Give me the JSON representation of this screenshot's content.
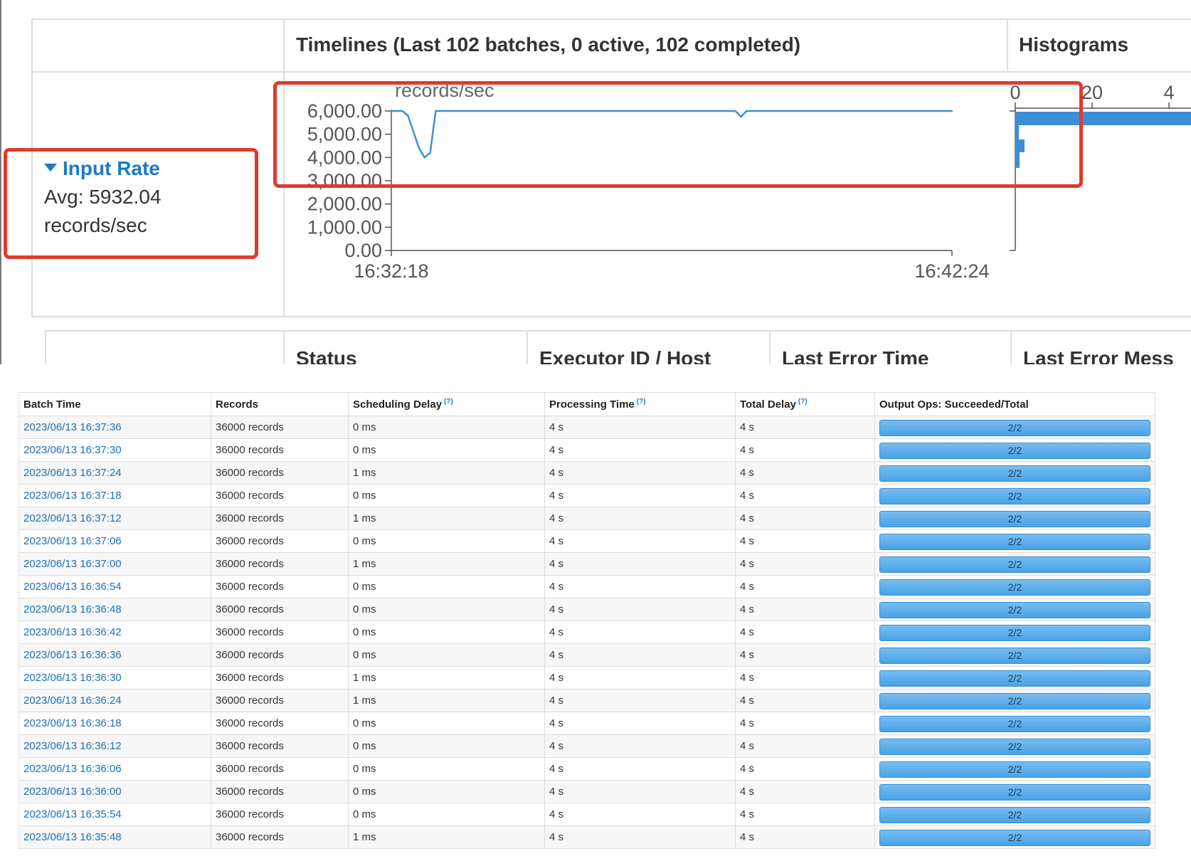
{
  "panel": {
    "timelines_title": "Timelines (Last 102 batches, 0 active, 102 completed)",
    "histograms_title": "Histograms",
    "input_rate_label": "Input Rate",
    "input_rate_avg": "Avg: 5932.04",
    "input_rate_unit": "records/sec",
    "receivers_headers": [
      "Status",
      "Executor ID / Host",
      "Last Error Time",
      "Last Error Mess"
    ]
  },
  "chart_data": [
    {
      "type": "line",
      "ylabel": "records/sec",
      "y_ticks": [
        "6,000.00",
        "5,000.00",
        "4,000.00",
        "3,000.00",
        "2,000.00",
        "1,000.00",
        "0.00"
      ],
      "x_ticks": [
        "16:32:18",
        "16:42:24"
      ],
      "ylim": [
        0,
        6000
      ],
      "x": [
        "16:32:18",
        "16:32:30",
        "16:32:36",
        "16:32:48",
        "16:32:54",
        "16:33:00",
        "16:33:06",
        "16:38:30",
        "16:38:36",
        "16:38:42",
        "16:42:24"
      ],
      "values": [
        6000,
        6000,
        5800,
        4400,
        4000,
        4200,
        6000,
        6000,
        5750,
        6000,
        6000
      ],
      "color": "#3c8fd6"
    },
    {
      "type": "bar",
      "orientation": "horizontal",
      "x_ticks": [
        "0",
        "20",
        "4"
      ],
      "color": "#3c8fd6"
    }
  ],
  "table": {
    "headers": [
      "Batch Time",
      "Records",
      "Scheduling Delay",
      "Processing Time",
      "Total Delay",
      "Output Ops: Succeeded/Total"
    ],
    "help_marker": "(?)",
    "rows": [
      {
        "time": "2023/06/13 16:37:36",
        "records": "36000 records",
        "sched": "0 ms",
        "proc": "4 s",
        "total": "4 s",
        "ops": "2/2"
      },
      {
        "time": "2023/06/13 16:37:30",
        "records": "36000 records",
        "sched": "0 ms",
        "proc": "4 s",
        "total": "4 s",
        "ops": "2/2"
      },
      {
        "time": "2023/06/13 16:37:24",
        "records": "36000 records",
        "sched": "1 ms",
        "proc": "4 s",
        "total": "4 s",
        "ops": "2/2"
      },
      {
        "time": "2023/06/13 16:37:18",
        "records": "36000 records",
        "sched": "0 ms",
        "proc": "4 s",
        "total": "4 s",
        "ops": "2/2"
      },
      {
        "time": "2023/06/13 16:37:12",
        "records": "36000 records",
        "sched": "1 ms",
        "proc": "4 s",
        "total": "4 s",
        "ops": "2/2"
      },
      {
        "time": "2023/06/13 16:37:06",
        "records": "36000 records",
        "sched": "0 ms",
        "proc": "4 s",
        "total": "4 s",
        "ops": "2/2"
      },
      {
        "time": "2023/06/13 16:37:00",
        "records": "36000 records",
        "sched": "1 ms",
        "proc": "4 s",
        "total": "4 s",
        "ops": "2/2"
      },
      {
        "time": "2023/06/13 16:36:54",
        "records": "36000 records",
        "sched": "0 ms",
        "proc": "4 s",
        "total": "4 s",
        "ops": "2/2"
      },
      {
        "time": "2023/06/13 16:36:48",
        "records": "36000 records",
        "sched": "0 ms",
        "proc": "4 s",
        "total": "4 s",
        "ops": "2/2"
      },
      {
        "time": "2023/06/13 16:36:42",
        "records": "36000 records",
        "sched": "0 ms",
        "proc": "4 s",
        "total": "4 s",
        "ops": "2/2"
      },
      {
        "time": "2023/06/13 16:36:36",
        "records": "36000 records",
        "sched": "0 ms",
        "proc": "4 s",
        "total": "4 s",
        "ops": "2/2"
      },
      {
        "time": "2023/06/13 16:36:30",
        "records": "36000 records",
        "sched": "1 ms",
        "proc": "4 s",
        "total": "4 s",
        "ops": "2/2"
      },
      {
        "time": "2023/06/13 16:36:24",
        "records": "36000 records",
        "sched": "1 ms",
        "proc": "4 s",
        "total": "4 s",
        "ops": "2/2"
      },
      {
        "time": "2023/06/13 16:36:18",
        "records": "36000 records",
        "sched": "0 ms",
        "proc": "4 s",
        "total": "4 s",
        "ops": "2/2"
      },
      {
        "time": "2023/06/13 16:36:12",
        "records": "36000 records",
        "sched": "0 ms",
        "proc": "4 s",
        "total": "4 s",
        "ops": "2/2"
      },
      {
        "time": "2023/06/13 16:36:06",
        "records": "36000 records",
        "sched": "0 ms",
        "proc": "4 s",
        "total": "4 s",
        "ops": "2/2"
      },
      {
        "time": "2023/06/13 16:36:00",
        "records": "36000 records",
        "sched": "0 ms",
        "proc": "4 s",
        "total": "4 s",
        "ops": "2/2"
      },
      {
        "time": "2023/06/13 16:35:54",
        "records": "36000 records",
        "sched": "0 ms",
        "proc": "4 s",
        "total": "4 s",
        "ops": "2/2"
      },
      {
        "time": "2023/06/13 16:35:48",
        "records": "36000 records",
        "sched": "1 ms",
        "proc": "4 s",
        "total": "4 s",
        "ops": "2/2"
      }
    ]
  },
  "colors": {
    "link": "#1a7bc4",
    "highlight_box": "#e03a2e",
    "progress_bar": "#48a2e6"
  }
}
